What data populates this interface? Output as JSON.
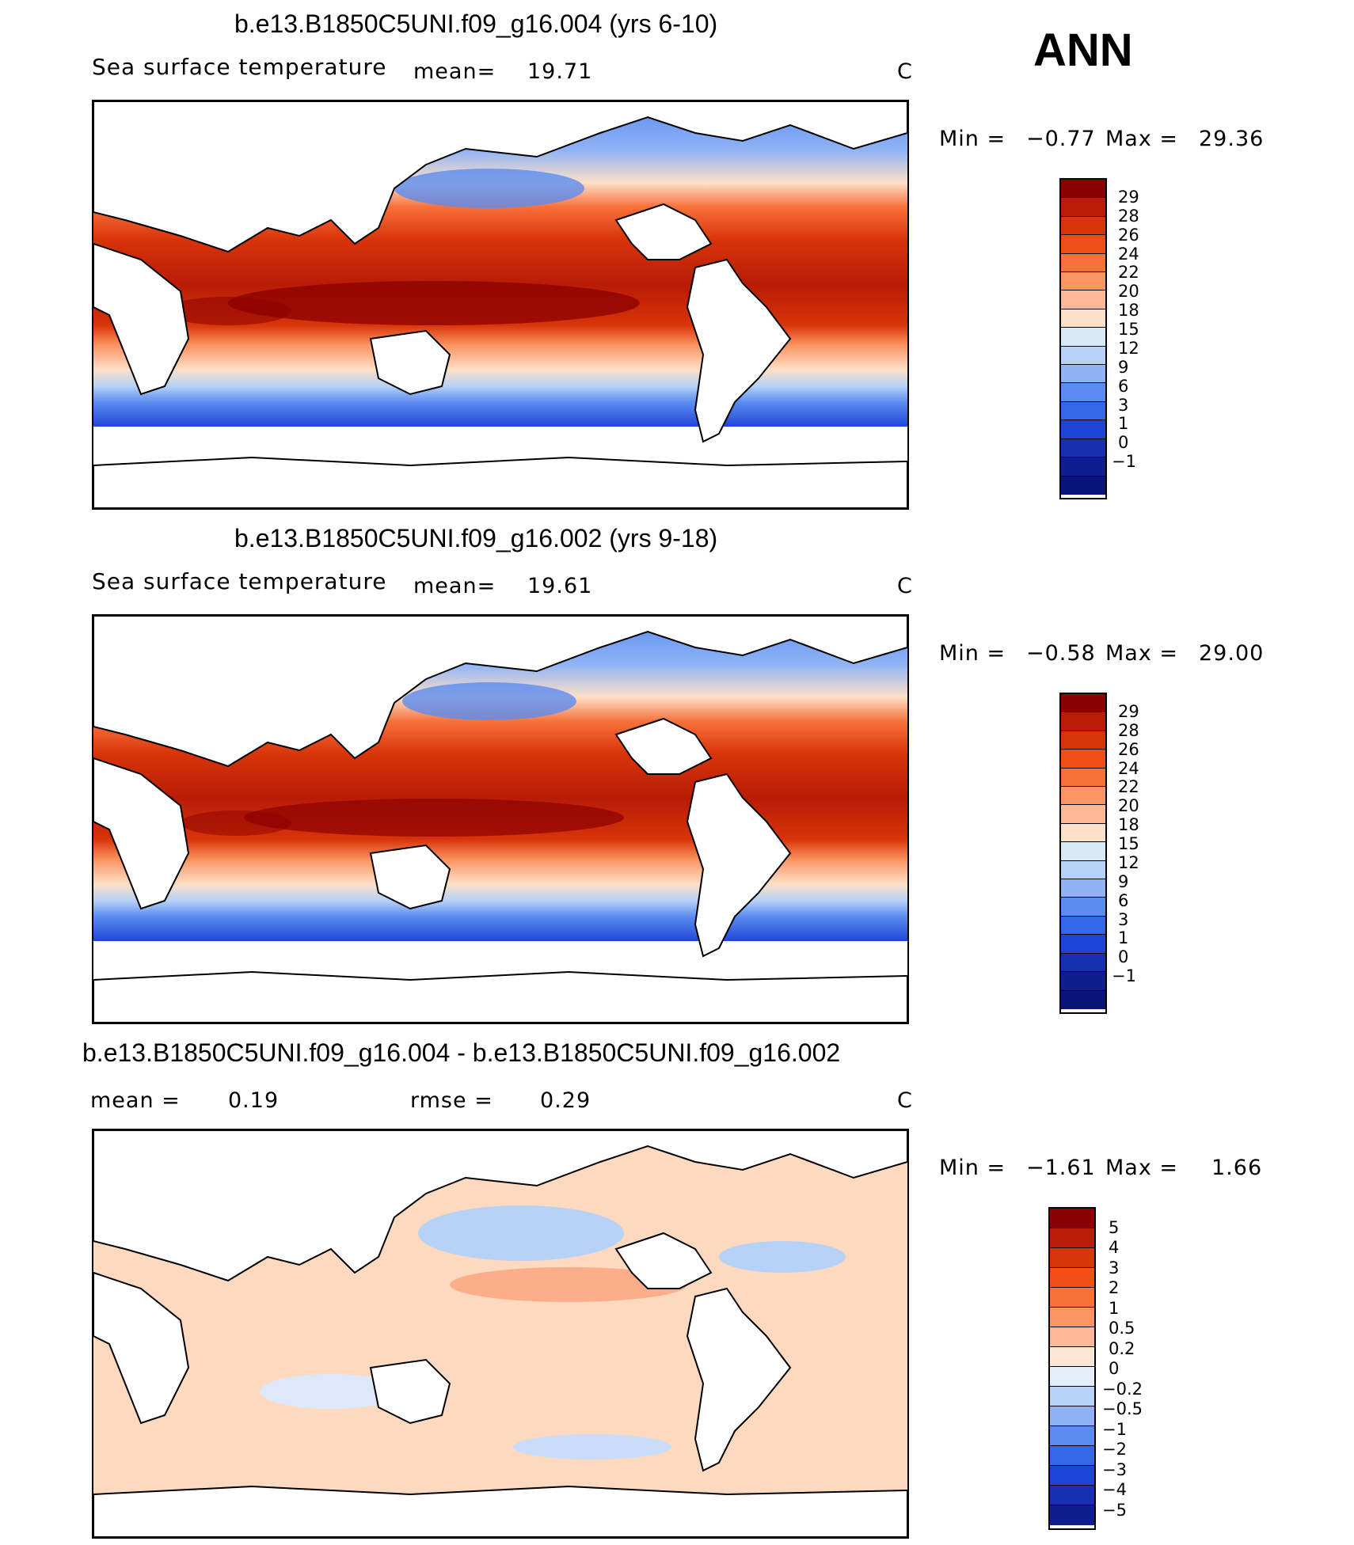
{
  "season": "ANN",
  "panels": [
    {
      "title": "b.e13.B1850C5UNI.f09_g16.004 (yrs 6-10)",
      "variable": "Sea surface temperature",
      "stat1_label": "mean=",
      "stat1_value": "19.71",
      "stat2_label": "",
      "stat2_value": "",
      "units": "C",
      "min_label": "Min =",
      "min_value": "−0.77",
      "max_label": "Max =",
      "max_value": "29.36",
      "colorbar_labels": [
        "29",
        "28",
        "26",
        "24",
        "22",
        "20",
        "18",
        "15",
        "12",
        "9",
        "6",
        "3",
        "1",
        "0",
        "−1"
      ],
      "colorbar_colors": [
        "#8b0000",
        "#b81c06",
        "#d8340a",
        "#ef4f18",
        "#f8703a",
        "#fb9562",
        "#fdb896",
        "#fde0c8",
        "#d8e9f8",
        "#b6d2f7",
        "#8fb3f5",
        "#5b8cf0",
        "#3566e8",
        "#1f45d6",
        "#1830b0",
        "#0e1e8c",
        "#081478"
      ],
      "chart_data": {
        "type": "heatmap",
        "title": "b.e13.B1850C5UNI.f09_g16.004 (yrs 6-10)",
        "variable": "Sea surface temperature",
        "units": "C",
        "mean": 19.71,
        "min": -0.77,
        "max": 29.36,
        "contour_levels": [
          -1,
          0,
          1,
          3,
          6,
          9,
          12,
          15,
          18,
          20,
          22,
          24,
          26,
          28,
          29
        ],
        "projection": "cylindrical equidistant, Pacific-centered"
      }
    },
    {
      "title": "b.e13.B1850C5UNI.f09_g16.002 (yrs 9-18)",
      "variable": "Sea surface temperature",
      "stat1_label": "mean=",
      "stat1_value": "19.61",
      "stat2_label": "",
      "stat2_value": "",
      "units": "C",
      "min_label": "Min =",
      "min_value": "−0.58",
      "max_label": "Max =",
      "max_value": "29.00",
      "colorbar_labels": [
        "29",
        "28",
        "26",
        "24",
        "22",
        "20",
        "18",
        "15",
        "12",
        "9",
        "6",
        "3",
        "1",
        "0",
        "−1"
      ],
      "colorbar_colors": [
        "#8b0000",
        "#b81c06",
        "#d8340a",
        "#ef4f18",
        "#f8703a",
        "#fb9562",
        "#fdb896",
        "#fde0c8",
        "#d8e9f8",
        "#b6d2f7",
        "#8fb3f5",
        "#5b8cf0",
        "#3566e8",
        "#1f45d6",
        "#1830b0",
        "#0e1e8c",
        "#081478"
      ],
      "chart_data": {
        "type": "heatmap",
        "title": "b.e13.B1850C5UNI.f09_g16.002 (yrs 9-18)",
        "variable": "Sea surface temperature",
        "units": "C",
        "mean": 19.61,
        "min": -0.58,
        "max": 29.0,
        "contour_levels": [
          -1,
          0,
          1,
          3,
          6,
          9,
          12,
          15,
          18,
          20,
          22,
          24,
          26,
          28,
          29
        ],
        "projection": "cylindrical equidistant, Pacific-centered"
      }
    },
    {
      "title": "b.e13.B1850C5UNI.f09_g16.004 - b.e13.B1850C5UNI.f09_g16.002",
      "variable": "",
      "stat1_label": "mean =",
      "stat1_value": "0.19",
      "stat2_label": "rmse =",
      "stat2_value": "0.29",
      "units": "C",
      "min_label": "Min =",
      "min_value": "−1.61",
      "max_label": "Max =",
      "max_value": "1.66",
      "colorbar_labels": [
        "5",
        "4",
        "3",
        "2",
        "1",
        "0.5",
        "0.2",
        "0",
        "−0.2",
        "−0.5",
        "−1",
        "−2",
        "−3",
        "−4",
        "−5"
      ],
      "colorbar_colors": [
        "#8b0000",
        "#b81c06",
        "#d8340a",
        "#ef4f18",
        "#f8703a",
        "#fb9562",
        "#fdb896",
        "#fde6d4",
        "#e3eefa",
        "#b6d2f7",
        "#8fb3f5",
        "#5b8cf0",
        "#3566e8",
        "#1f45d6",
        "#1830b0",
        "#0e1e8c"
      ],
      "chart_data": {
        "type": "heatmap",
        "title": "b.e13.B1850C5UNI.f09_g16.004 - b.e13.B1850C5UNI.f09_g16.002",
        "units": "C",
        "mean": 0.19,
        "rmse": 0.29,
        "min": -1.61,
        "max": 1.66,
        "contour_levels": [
          -5,
          -4,
          -3,
          -2,
          -1,
          -0.5,
          -0.2,
          0,
          0.2,
          0.5,
          1,
          2,
          3,
          4,
          5
        ],
        "projection": "cylindrical equidistant, Pacific-centered"
      }
    }
  ]
}
